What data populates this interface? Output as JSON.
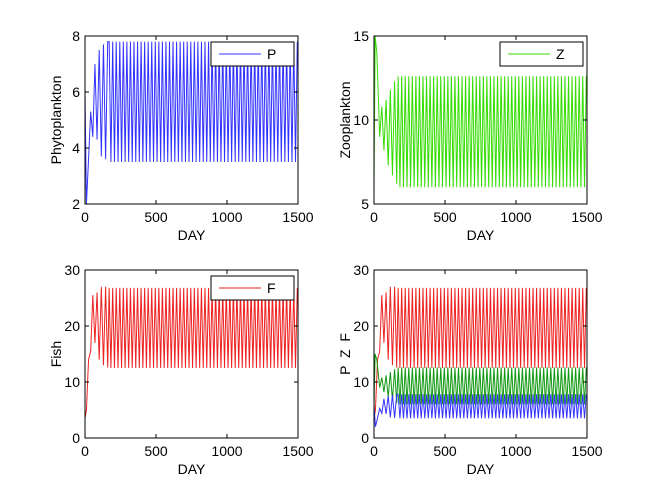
{
  "chart_data": [
    {
      "type": "line",
      "xlabel": "DAY",
      "ylabel": "Phytoplankton",
      "xlim": [
        0,
        1500
      ],
      "ylim": [
        2,
        8
      ],
      "xticks": [
        "0",
        "500",
        "1000",
        "1500"
      ],
      "yticks": [
        "2",
        "4",
        "6",
        "8"
      ],
      "grid": false,
      "legend": "top-right",
      "series": [
        {
          "name": "P",
          "color": "#3333ff",
          "x0": 0,
          "x_start_osc": 170,
          "period": 25,
          "min": 3.5,
          "max": 7.8,
          "transient": [
            [
              0,
              6.0
            ],
            [
              10,
              2.0
            ],
            [
              25,
              3.6
            ],
            [
              40,
              5.3
            ],
            [
              55,
              4.4
            ],
            [
              70,
              7.0
            ],
            [
              85,
              4.3
            ],
            [
              100,
              7.5
            ],
            [
              115,
              3.7
            ],
            [
              130,
              7.7
            ],
            [
              145,
              3.6
            ],
            [
              160,
              7.8
            ]
          ]
        }
      ]
    },
    {
      "type": "line",
      "xlabel": "DAY",
      "ylabel": "Zooplankton",
      "xlim": [
        0,
        1500
      ],
      "ylim": [
        5,
        15
      ],
      "xticks": [
        "0",
        "500",
        "1000",
        "1500"
      ],
      "yticks": [
        "5",
        "10",
        "15"
      ],
      "grid": false,
      "legend": "top-right",
      "series": [
        {
          "name": "Z",
          "color": "#33dd00",
          "x0": 0,
          "x_start_osc": 170,
          "period": 25,
          "min": 6.0,
          "max": 12.6,
          "transient": [
            [
              0,
              6.0
            ],
            [
              8,
              15.0
            ],
            [
              20,
              14.0
            ],
            [
              40,
              9.0
            ],
            [
              55,
              10.8
            ],
            [
              70,
              8.2
            ],
            [
              85,
              11.2
            ],
            [
              100,
              7.3
            ],
            [
              115,
              11.8
            ],
            [
              130,
              6.7
            ],
            [
              145,
              12.3
            ],
            [
              160,
              6.2
            ]
          ]
        }
      ]
    },
    {
      "type": "line",
      "xlabel": "DAY",
      "ylabel": "Fish",
      "xlim": [
        0,
        1500
      ],
      "ylim": [
        0,
        30
      ],
      "xticks": [
        "0",
        "500",
        "1000",
        "1500"
      ],
      "yticks": [
        "0",
        "10",
        "20",
        "30"
      ],
      "grid": false,
      "legend": "top-right",
      "series": [
        {
          "name": "F",
          "color": "#ee2222",
          "x0": 0,
          "x_start_osc": 170,
          "period": 25,
          "min": 12.5,
          "max": 26.8,
          "transient": [
            [
              0,
              3.5
            ],
            [
              10,
              5.0
            ],
            [
              25,
              14.0
            ],
            [
              40,
              15.5
            ],
            [
              55,
              25.5
            ],
            [
              70,
              17.0
            ],
            [
              85,
              26.0
            ],
            [
              100,
              14.0
            ],
            [
              115,
              27.0
            ],
            [
              130,
              13.0
            ],
            [
              145,
              27.0
            ],
            [
              160,
              12.6
            ]
          ]
        }
      ]
    },
    {
      "type": "line",
      "xlabel": "DAY",
      "ylabel": "P  Z  F",
      "xlim": [
        0,
        1500
      ],
      "ylim": [
        0,
        30
      ],
      "xticks": [
        "0",
        "500",
        "1000",
        "1500"
      ],
      "yticks": [
        "0",
        "10",
        "20",
        "30"
      ],
      "grid": false,
      "series": [
        {
          "color": "#ee2222",
          "x0": 0,
          "x_start_osc": 170,
          "period": 25,
          "min": 12.5,
          "max": 26.8,
          "transient": [
            [
              0,
              3.5
            ],
            [
              10,
              5.0
            ],
            [
              25,
              14.0
            ],
            [
              40,
              15.5
            ],
            [
              55,
              25.5
            ],
            [
              70,
              17.0
            ],
            [
              85,
              26.0
            ],
            [
              100,
              14.0
            ],
            [
              115,
              27.0
            ],
            [
              130,
              13.0
            ],
            [
              145,
              27.0
            ],
            [
              160,
              12.6
            ]
          ]
        },
        {
          "color": "#119911",
          "x0": 0,
          "x_start_osc": 170,
          "period": 25,
          "min": 6.0,
          "max": 12.6,
          "transient": [
            [
              0,
              6.0
            ],
            [
              8,
              15.0
            ],
            [
              20,
              14.0
            ],
            [
              40,
              9.0
            ],
            [
              55,
              10.8
            ],
            [
              70,
              8.2
            ],
            [
              85,
              11.2
            ],
            [
              100,
              7.3
            ],
            [
              115,
              11.8
            ],
            [
              130,
              6.7
            ],
            [
              145,
              12.3
            ],
            [
              160,
              6.2
            ]
          ]
        },
        {
          "color": "#3333ff",
          "x0": 0,
          "x_start_osc": 170,
          "period": 25,
          "min": 3.5,
          "max": 7.8,
          "transient": [
            [
              0,
              6.0
            ],
            [
              10,
              2.0
            ],
            [
              25,
              3.6
            ],
            [
              40,
              5.3
            ],
            [
              55,
              4.4
            ],
            [
              70,
              7.0
            ],
            [
              85,
              4.3
            ],
            [
              100,
              7.5
            ],
            [
              115,
              3.7
            ],
            [
              130,
              7.7
            ],
            [
              145,
              3.6
            ],
            [
              160,
              7.8
            ]
          ]
        }
      ]
    }
  ]
}
